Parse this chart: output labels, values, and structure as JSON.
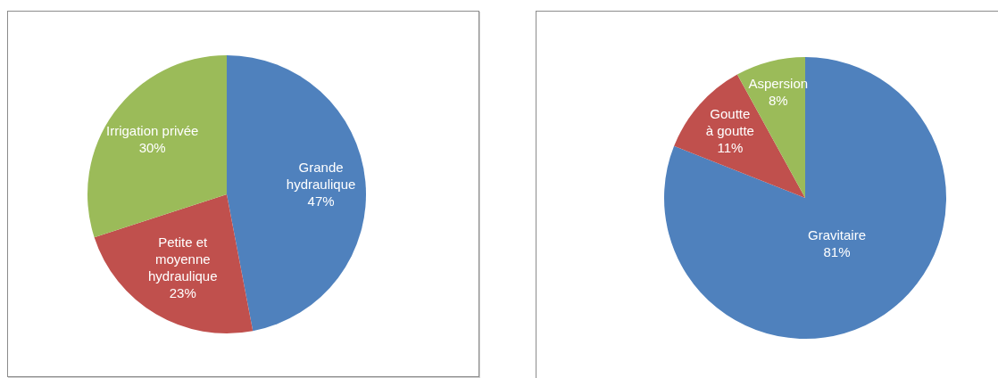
{
  "chart_data": [
    {
      "type": "pie",
      "categories": [
        "Grande hydraulique",
        "Petite et moyenne hydraulique",
        "Irrigation privée"
      ],
      "values": [
        47,
        23,
        30
      ],
      "colors": [
        "#4f81bd",
        "#c0504d",
        "#9bbb59"
      ],
      "value_labels": [
        "47%",
        "23%",
        "30%"
      ]
    },
    {
      "type": "pie",
      "categories": [
        "Gravitaire",
        "Goutte à goutte",
        "Aspersion"
      ],
      "values": [
        81,
        11,
        8
      ],
      "colors": [
        "#4f81bd",
        "#c0504d",
        "#9bbb59"
      ],
      "value_labels": [
        "81%",
        "11%",
        "8%"
      ]
    }
  ]
}
